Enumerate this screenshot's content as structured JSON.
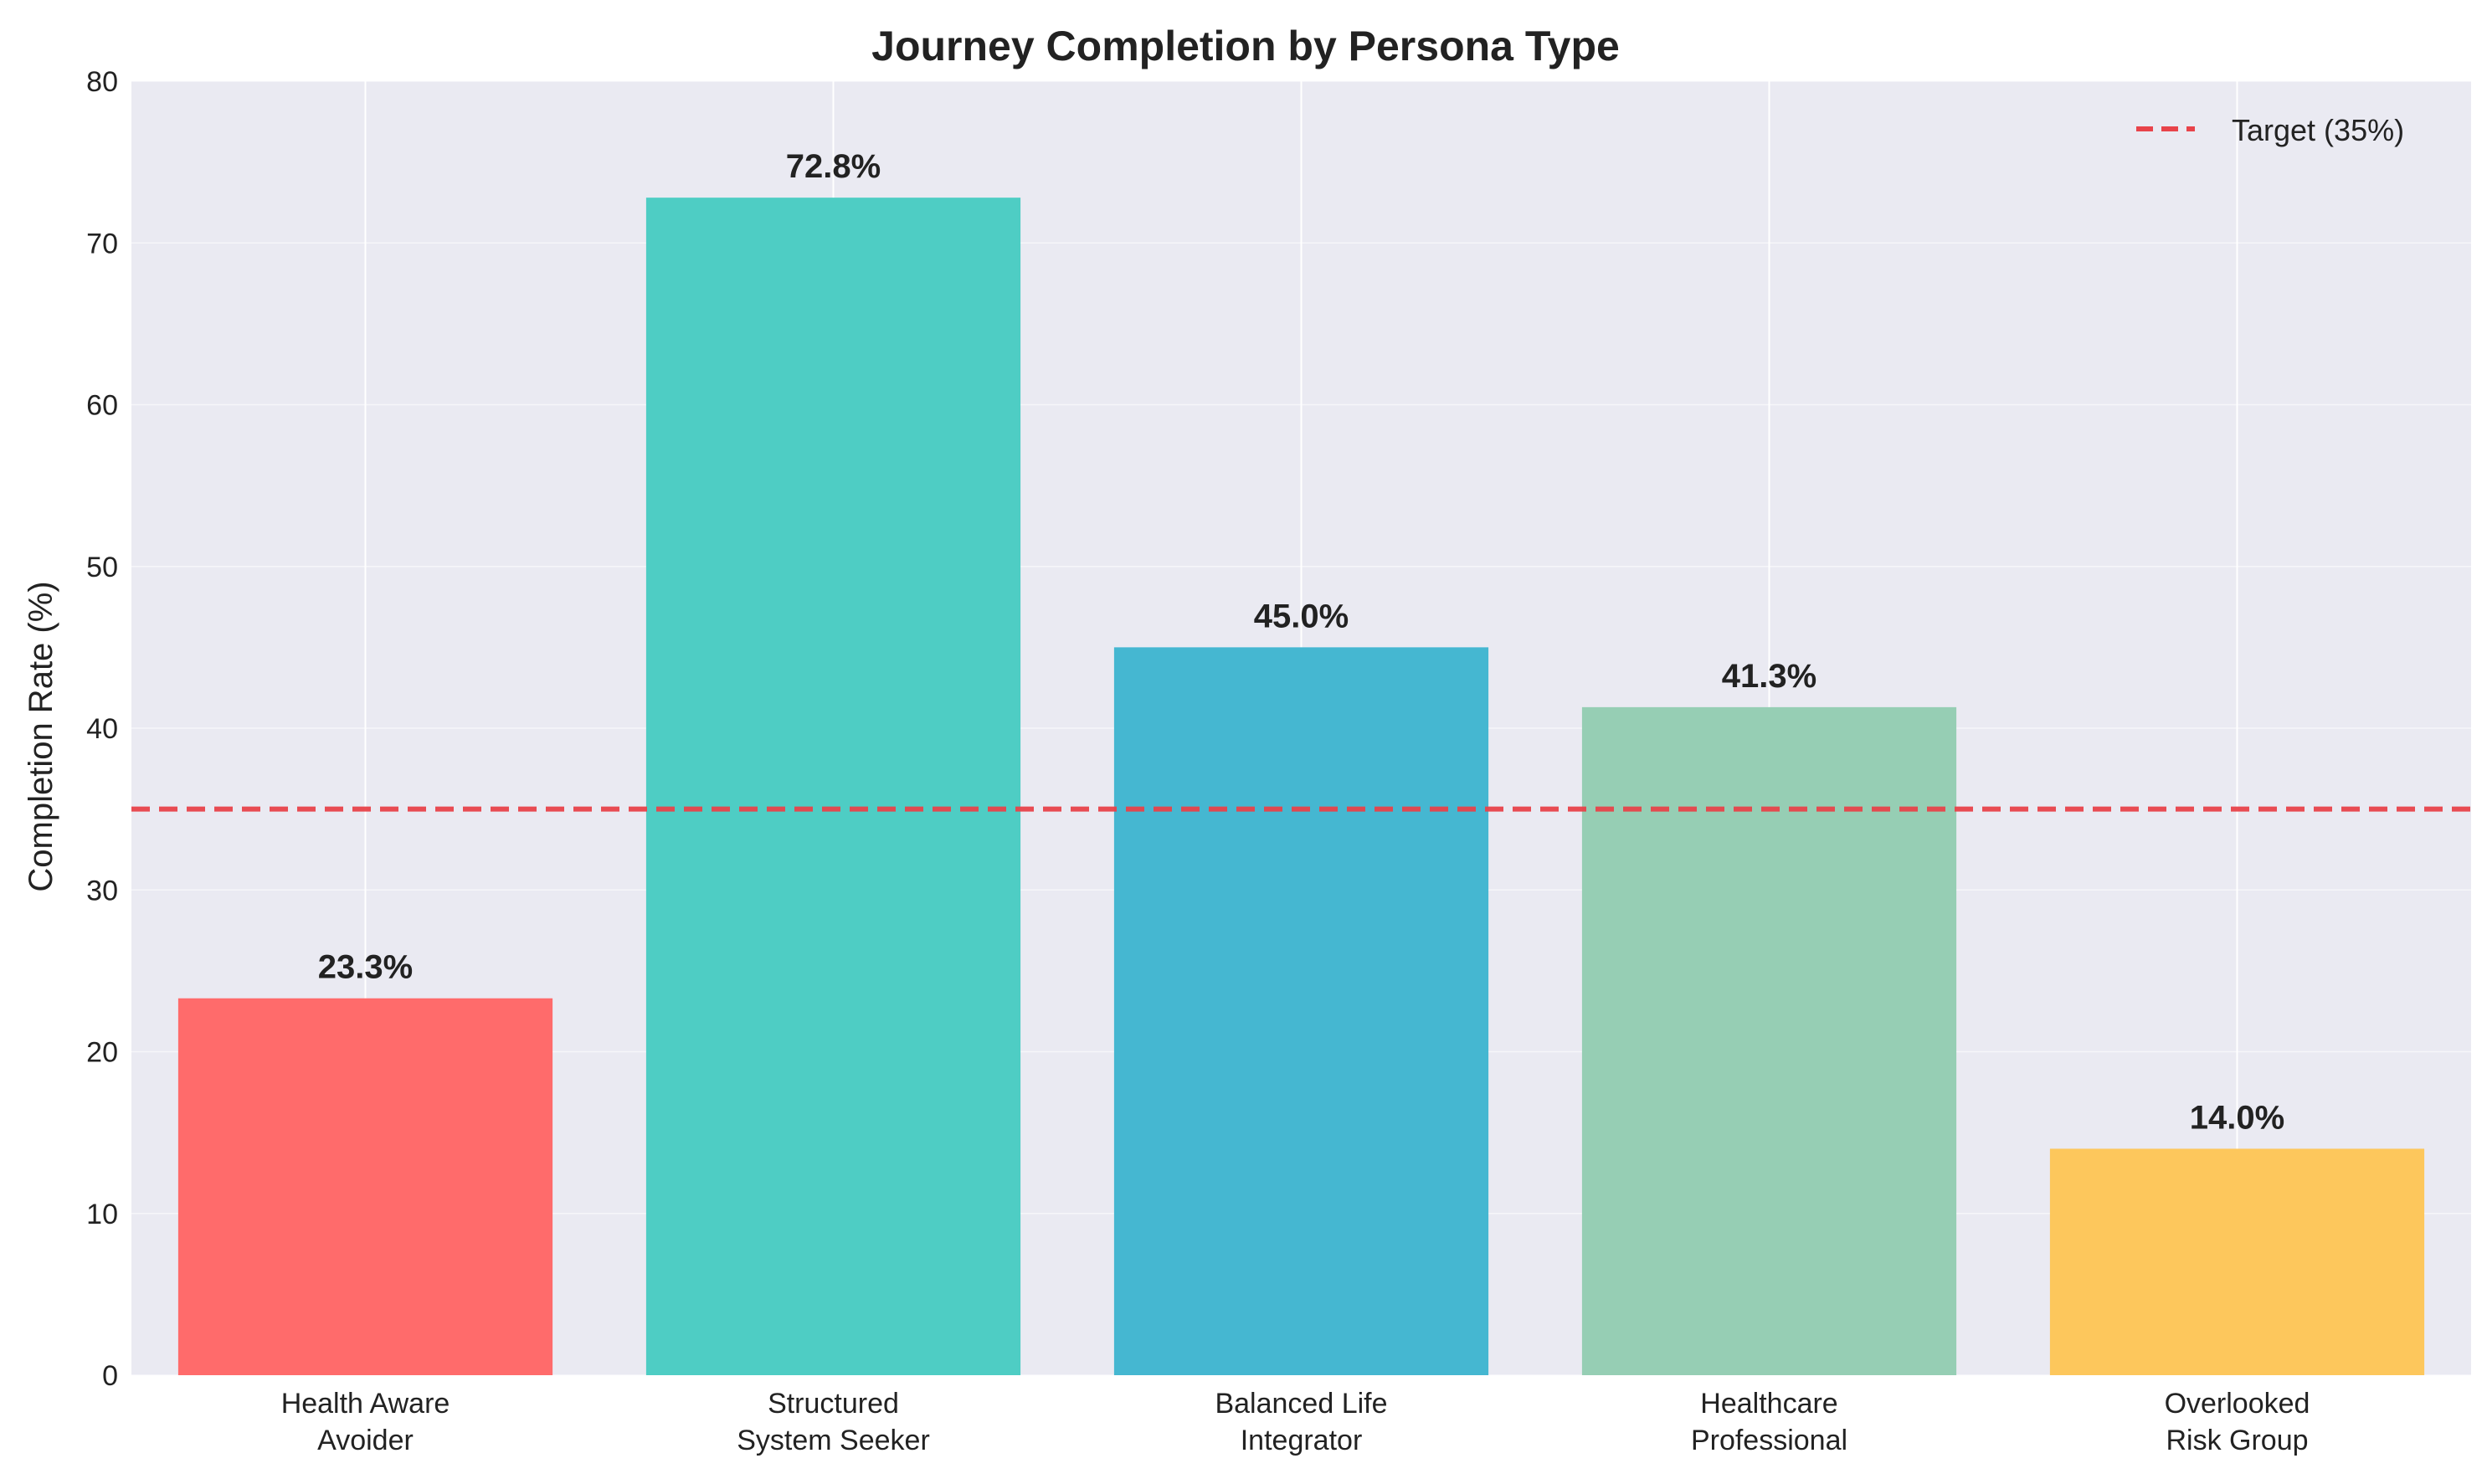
{
  "chart_data": {
    "type": "bar",
    "title": "Journey Completion by Persona Type",
    "xlabel": "",
    "ylabel": "Completion Rate (%)",
    "ylim": [
      0,
      80
    ],
    "yticks": [
      0,
      10,
      20,
      30,
      40,
      50,
      60,
      70,
      80
    ],
    "grid": true,
    "categories": [
      [
        "Health Aware",
        "Avoider"
      ],
      [
        "Structured",
        "System Seeker"
      ],
      [
        "Balanced Life",
        "Integrator"
      ],
      [
        "Healthcare",
        "Professional"
      ],
      [
        "Overlooked",
        "Risk Group"
      ]
    ],
    "values": [
      23.3,
      72.8,
      45.0,
      41.3,
      14.0
    ],
    "value_labels": [
      "23.3%",
      "72.8%",
      "45.0%",
      "41.3%",
      "14.0%"
    ],
    "colors": [
      "#ff6b6b",
      "#4ecdc4",
      "#45b7d1",
      "#96ceb4",
      "#fdc75c"
    ],
    "reference_line": {
      "value": 35,
      "label": "Target (35%)",
      "color": "#e8434a",
      "style": "dashed"
    },
    "legend_position": "top-right",
    "background_color": "#eaeaf2"
  }
}
